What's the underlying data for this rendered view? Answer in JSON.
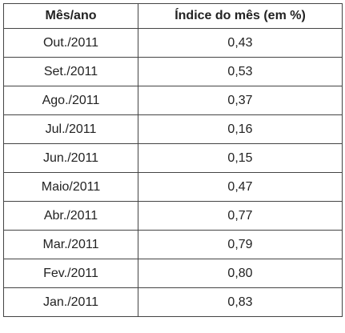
{
  "chart_data": {
    "type": "table",
    "columns": [
      "Mês/ano",
      "Índice do mês (em %)"
    ],
    "rows": [
      {
        "month": "Out./2011",
        "value": "0,43"
      },
      {
        "month": "Set./2011",
        "value": "0,53"
      },
      {
        "month": "Ago./2011",
        "value": "0,37"
      },
      {
        "month": "Jul./2011",
        "value": "0,16"
      },
      {
        "month": "Jun./2011",
        "value": "0,15"
      },
      {
        "month": "Maio/2011",
        "value": "0,47"
      },
      {
        "month": "Abr./2011",
        "value": "0,77"
      },
      {
        "month": "Mar./2011",
        "value": "0,79"
      },
      {
        "month": "Fev./2011",
        "value": "0,80"
      },
      {
        "month": "Jan./2011",
        "value": "0,83"
      }
    ]
  }
}
